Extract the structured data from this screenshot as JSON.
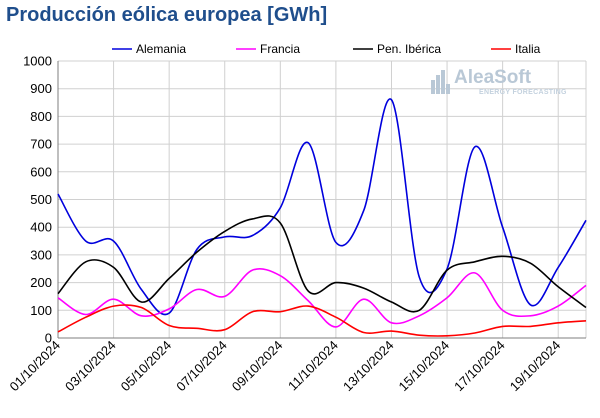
{
  "chart_data": {
    "type": "line",
    "title": "Producción eólica europea [GWh]",
    "xlabel": "",
    "ylabel": "",
    "ylim": [
      0,
      1000
    ],
    "yticks": [
      0,
      100,
      200,
      300,
      400,
      500,
      600,
      700,
      800,
      900,
      1000
    ],
    "grid": true,
    "legend_position": "top",
    "x": [
      "01/10/2024",
      "02/10/2024",
      "03/10/2024",
      "04/10/2024",
      "05/10/2024",
      "06/10/2024",
      "07/10/2024",
      "08/10/2024",
      "09/10/2024",
      "10/10/2024",
      "11/10/2024",
      "12/10/2024",
      "13/10/2024",
      "14/10/2024",
      "15/10/2024",
      "16/10/2024",
      "17/10/2024",
      "18/10/2024",
      "19/10/2024",
      "20/10/2024"
    ],
    "xtick_labels": [
      "01/10/2024",
      "03/10/2024",
      "05/10/2024",
      "07/10/2024",
      "09/10/2024",
      "11/10/2024",
      "13/10/2024",
      "15/10/2024",
      "17/10/2024",
      "19/10/2024"
    ],
    "series": [
      {
        "name": "Alemania",
        "color": "#0000dd",
        "values": [
          520,
          350,
          350,
          175,
          90,
          320,
          365,
          370,
          470,
          705,
          345,
          460,
          860,
          220,
          250,
          690,
          400,
          120,
          255,
          425
        ]
      },
      {
        "name": "Francia",
        "color": "#ff00ff",
        "values": [
          145,
          85,
          140,
          80,
          105,
          175,
          150,
          245,
          225,
          135,
          40,
          140,
          55,
          80,
          145,
          235,
          100,
          80,
          115,
          190
        ]
      },
      {
        "name": "Pen. Ibérica",
        "color": "#000000",
        "values": [
          160,
          275,
          255,
          130,
          215,
          310,
          385,
          430,
          415,
          170,
          200,
          180,
          130,
          100,
          245,
          275,
          295,
          270,
          185,
          110
        ]
      },
      {
        "name": "Italia",
        "color": "#ff0000",
        "values": [
          22,
          75,
          115,
          110,
          45,
          35,
          30,
          95,
          95,
          115,
          75,
          20,
          25,
          10,
          8,
          18,
          42,
          42,
          55,
          62
        ]
      }
    ]
  },
  "logo": {
    "main": "AleaSoft",
    "sub": "ENERGY FORECASTING"
  }
}
